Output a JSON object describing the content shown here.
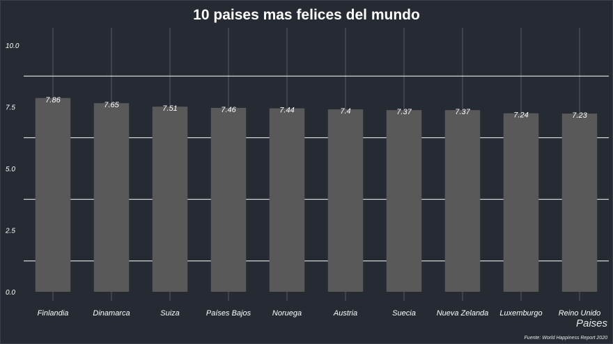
{
  "chart_data": {
    "type": "bar",
    "title": "10 paises mas felices del mundo",
    "xlabel": "Paises",
    "ylabel": "",
    "caption": "Fuente: World Happiness Report 2020",
    "categories": [
      "Finlandia",
      "Dinamarca",
      "Suiza",
      "Países Bajos",
      "Noruega",
      "Austria",
      "Suecia",
      "Nueva Zelanda",
      "Luxemburgo",
      "Reino Unido"
    ],
    "values": [
      7.86,
      7.65,
      7.51,
      7.46,
      7.44,
      7.4,
      7.37,
      7.37,
      7.24,
      7.23
    ],
    "value_labels": [
      "7.86",
      "7.65",
      "7.51",
      "7.46",
      "7.44",
      "7.4",
      "7.37",
      "7.37",
      "7.24",
      "7.23"
    ],
    "ylim": [
      0,
      10
    ],
    "yticks": [
      0,
      2.5,
      5,
      7.5,
      10
    ],
    "ytick_labels": [
      "0.0",
      "2.5",
      "5.0",
      "7.5",
      "10.0"
    ],
    "grid": true,
    "legend": "none",
    "colors": {
      "background": "#262a33",
      "bar": "#595959",
      "grid_major": "#555a64",
      "grid_minor": "#ffffff",
      "text": "#ffffff"
    }
  }
}
